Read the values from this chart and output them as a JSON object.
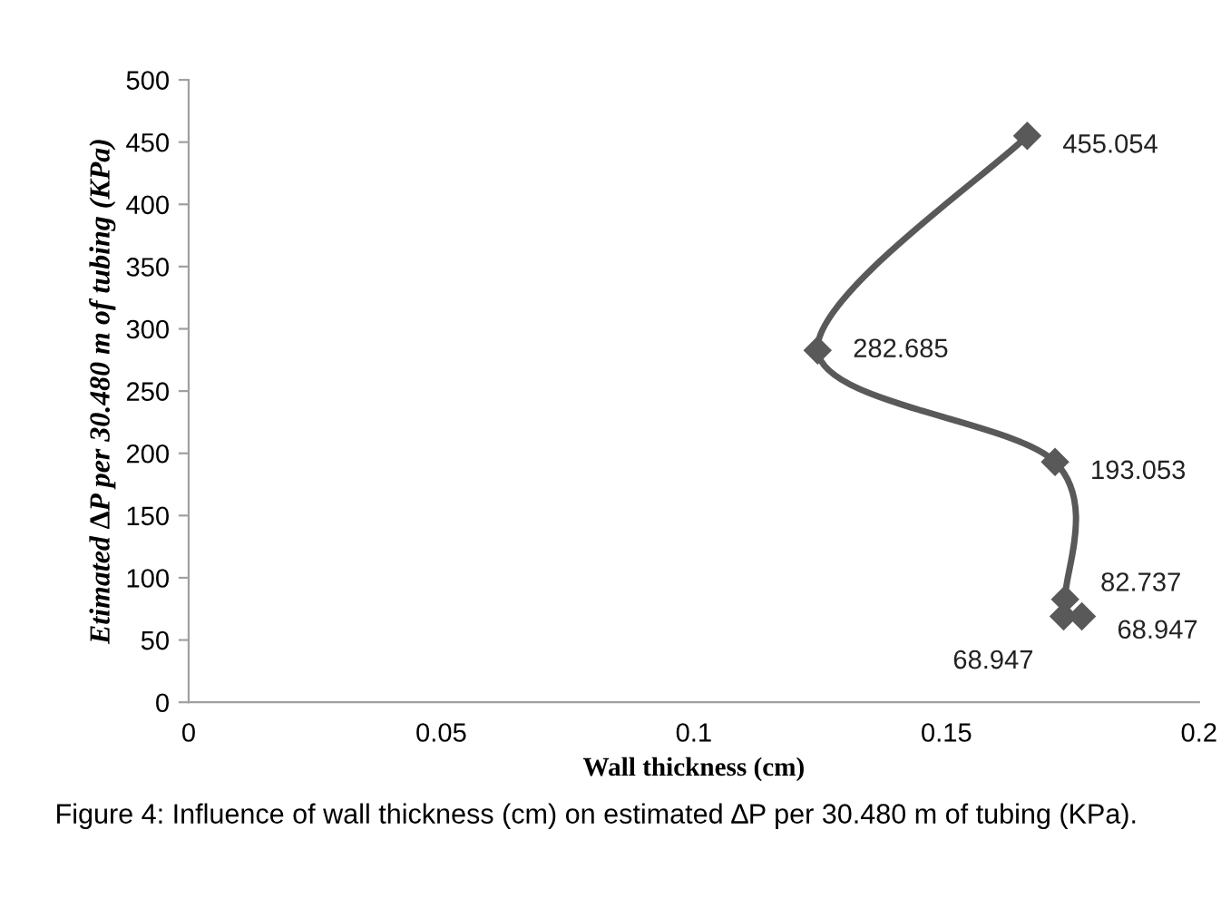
{
  "chart_data": {
    "type": "line",
    "xlabel": "Wall thickness (cm)",
    "ylabel": "Etimated ∆P per 30.480 m of tubing (KPa)",
    "annotations": [
      "Figure 4: Influence of wall thickness (cm) on estimated ∆P per 30.480 m of tubing (KPa)."
    ],
    "series": [
      {
        "color": "#595959",
        "x": [
          0.166,
          0.1245,
          0.1715,
          0.1735,
          0.1732,
          0.1768
        ],
        "values": [
          455.054,
          282.685,
          193.053,
          82.737,
          68.947,
          68.947
        ]
      }
    ],
    "xlim": [
      0,
      0.2
    ],
    "xticks": [
      0,
      0.05,
      0.1,
      0.15,
      0.2
    ],
    "ylim": [
      0,
      500
    ],
    "yticks": [
      0,
      50,
      100,
      150,
      200,
      250,
      300,
      350,
      400,
      450,
      500
    ],
    "marker": "diamond",
    "line_style": "solid",
    "data_labels": true,
    "grid": false,
    "legend": false
  }
}
